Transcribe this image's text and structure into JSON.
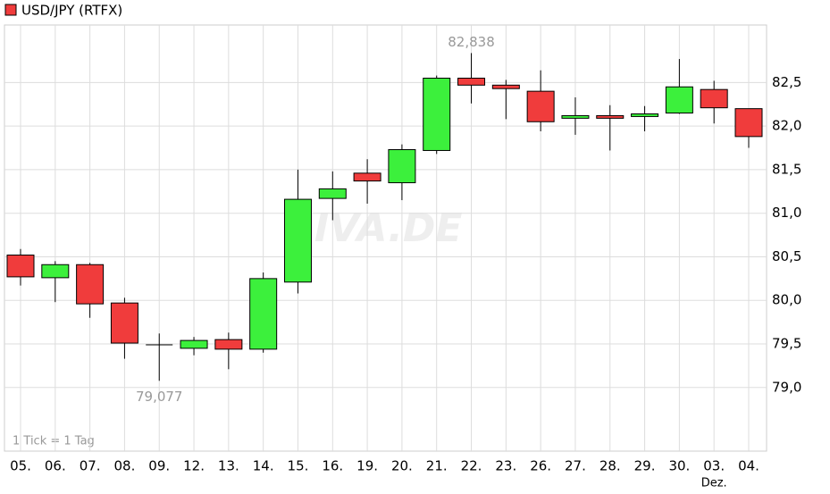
{
  "chart_data": {
    "type": "candlestick",
    "title": "USD/JPY (RTFX)",
    "categories": [
      "05.",
      "06.",
      "07.",
      "08.",
      "09.",
      "12.",
      "13.",
      "14.",
      "15.",
      "16.",
      "19.",
      "20.",
      "21.",
      "22.",
      "23.",
      "26.",
      "27.",
      "28.",
      "29.",
      "30.",
      "03.",
      "04."
    ],
    "x_sublabels": [
      null,
      null,
      null,
      null,
      null,
      null,
      null,
      null,
      null,
      null,
      null,
      null,
      null,
      null,
      null,
      null,
      null,
      null,
      null,
      null,
      "Dez.",
      null
    ],
    "open": [
      80.52,
      80.26,
      80.41,
      79.97,
      79.49,
      79.45,
      79.55,
      79.44,
      80.21,
      81.17,
      81.46,
      81.35,
      81.72,
      82.55,
      82.47,
      82.4,
      82.09,
      82.12,
      82.11,
      82.15,
      82.42,
      82.2
    ],
    "high": [
      80.59,
      80.45,
      80.43,
      80.03,
      79.62,
      79.58,
      79.63,
      80.32,
      81.5,
      81.48,
      81.62,
      81.79,
      82.58,
      82.838,
      82.53,
      82.64,
      82.33,
      82.24,
      82.23,
      82.77,
      82.52,
      82.2
    ],
    "low": [
      80.17,
      79.98,
      79.8,
      79.33,
      79.077,
      79.37,
      79.21,
      79.4,
      80.08,
      80.92,
      81.11,
      81.15,
      81.68,
      82.26,
      82.08,
      81.94,
      81.9,
      81.72,
      81.94,
      82.14,
      82.03,
      81.75
    ],
    "close": [
      80.27,
      80.41,
      79.96,
      79.51,
      79.49,
      79.54,
      79.44,
      80.25,
      81.16,
      81.28,
      81.37,
      81.73,
      82.55,
      82.47,
      82.43,
      82.05,
      82.12,
      82.09,
      82.14,
      82.45,
      82.21,
      81.88
    ],
    "up_color": "#3cf03c",
    "down_color": "#f03c3c",
    "ylim": [
      78.27,
      83.16
    ],
    "yticks": [
      {
        "value": 79,
        "label": "79,0"
      },
      {
        "value": 79.5,
        "label": "79,5"
      },
      {
        "value": 80,
        "label": "80,0"
      },
      {
        "value": 80.5,
        "label": "80,5"
      },
      {
        "value": 81,
        "label": "81,0"
      },
      {
        "value": 81.5,
        "label": "81,5"
      },
      {
        "value": 82,
        "label": "82,0"
      },
      {
        "value": 82.5,
        "label": "82,5"
      }
    ],
    "grid": true,
    "max_label": "82,838",
    "min_label": "79,077",
    "footnote": "1 Tick = 1 Tag",
    "watermark": "RIVA.DE"
  }
}
